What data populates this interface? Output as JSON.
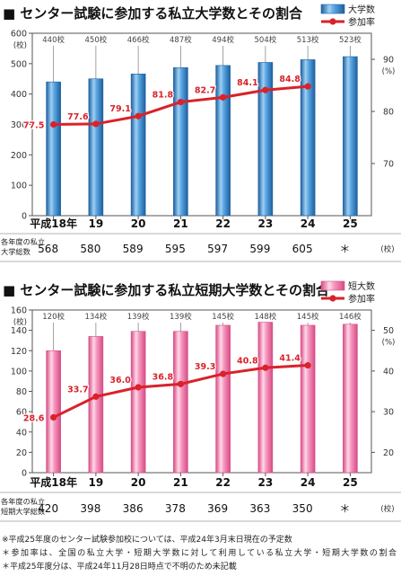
{
  "chart_data": [
    {
      "type": "bar+line",
      "title": "■ センター試験に参加する私立大学数とその割合",
      "categories": [
        "平成18年",
        "19",
        "20",
        "21",
        "22",
        "23",
        "24",
        "25"
      ],
      "bar_series": {
        "name": "大学数",
        "values": [
          440,
          450,
          466,
          487,
          494,
          504,
          513,
          523
        ],
        "labels": [
          "440校",
          "450校",
          "466校",
          "487校",
          "494校",
          "504校",
          "513校",
          "523校"
        ],
        "color": "#3a85c8"
      },
      "line_series": {
        "name": "参加率",
        "values": [
          77.5,
          77.6,
          79.1,
          81.8,
          82.7,
          84.1,
          84.8
        ],
        "labels": [
          "77.5",
          "77.6",
          "79.1",
          "81.8",
          "82.7",
          "84.1",
          "84.8"
        ],
        "color": "#d9222a"
      },
      "left_axis": {
        "unit": "(校)",
        "min": 0,
        "max": 600,
        "ticks": [
          "0",
          "100",
          "200",
          "300",
          "400",
          "500",
          "600"
        ]
      },
      "right_axis": {
        "unit": "(%)",
        "min": 60,
        "max": 95,
        "ticks": [
          "70",
          "80",
          "90"
        ]
      },
      "total_row": {
        "label_line1": "各年度の私立",
        "label_line2": "大学総数",
        "values": [
          "568",
          "580",
          "589",
          "595",
          "597",
          "599",
          "605",
          "＊"
        ],
        "unit": "(校)"
      }
    },
    {
      "type": "bar+line",
      "title": "■ センター試験に参加する私立短期大学数とその割合",
      "categories": [
        "平成18年",
        "19",
        "20",
        "21",
        "22",
        "23",
        "24",
        "25"
      ],
      "bar_series": {
        "name": "短大数",
        "values": [
          120,
          134,
          139,
          139,
          145,
          148,
          145,
          146
        ],
        "labels": [
          "120校",
          "134校",
          "139校",
          "139校",
          "145校",
          "148校",
          "145校",
          "146校"
        ],
        "color": "#ee7fab"
      },
      "line_series": {
        "name": "参加率",
        "values": [
          28.6,
          33.7,
          36.0,
          36.8,
          39.3,
          40.8,
          41.4
        ],
        "labels": [
          "28.6",
          "33.7",
          "36.0",
          "36.8",
          "39.3",
          "40.8",
          "41.4"
        ],
        "color": "#d9222a"
      },
      "left_axis": {
        "unit": "(校)",
        "min": 0,
        "max": 160,
        "ticks": [
          "0",
          "20",
          "40",
          "60",
          "80",
          "100",
          "120",
          "140",
          "160"
        ]
      },
      "right_axis": {
        "unit": "(%)",
        "min": 15,
        "max": 55,
        "ticks": [
          "20",
          "30",
          "40",
          "50"
        ]
      },
      "total_row": {
        "label_line1": "各年度の私立",
        "label_line2": "短期大学総数",
        "values": [
          "420",
          "398",
          "386",
          "378",
          "369",
          "363",
          "350",
          "＊"
        ],
        "unit": "(校)"
      }
    }
  ],
  "notes": [
    "※平成25年度のセンター試験参加校については、平成24年3月末日現在の予定数",
    "＊参加率は、全国の私立大学・短期大学数に対して利用している私立大学・短期大学数の割合",
    "＊平成25年度分は、平成24年11月28日時点で不明のため未記載"
  ]
}
